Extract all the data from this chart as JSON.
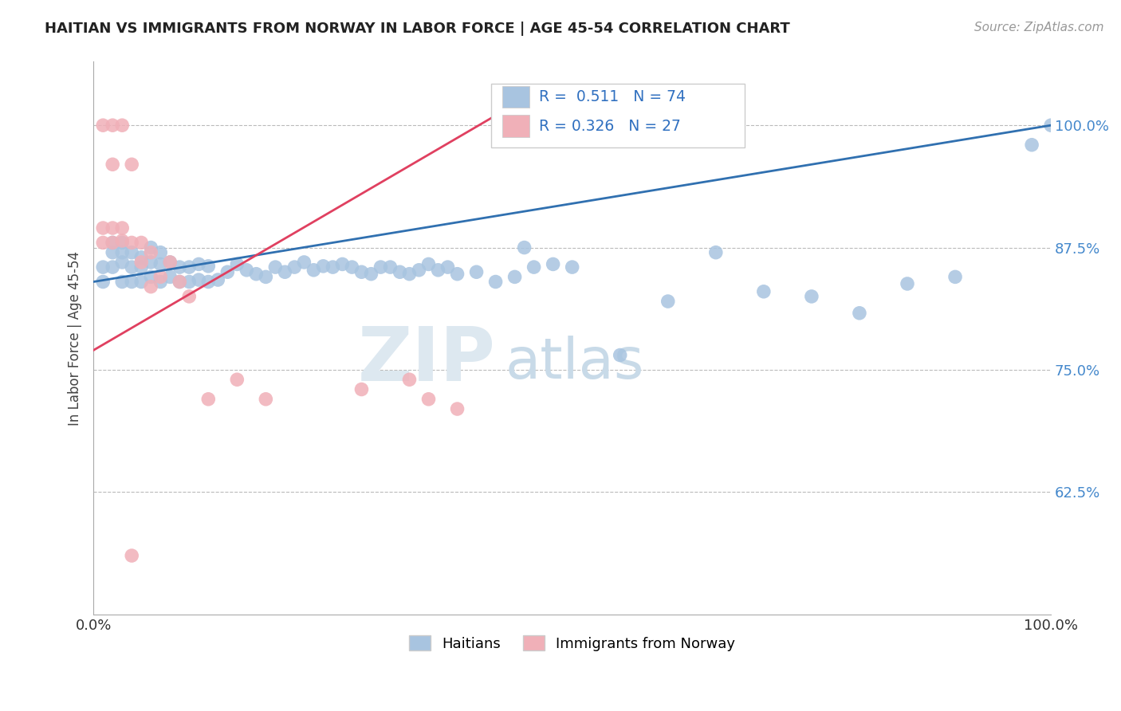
{
  "title": "HAITIAN VS IMMIGRANTS FROM NORWAY IN LABOR FORCE | AGE 45-54 CORRELATION CHART",
  "source": "Source: ZipAtlas.com",
  "ylabel": "In Labor Force | Age 45-54",
  "xlim": [
    0.0,
    1.0
  ],
  "ylim": [
    0.5,
    1.065
  ],
  "yticks": [
    0.625,
    0.75,
    0.875,
    1.0
  ],
  "ytick_labels": [
    "62.5%",
    "75.0%",
    "87.5%",
    "100.0%"
  ],
  "xticks": [
    0.0,
    0.25,
    0.5,
    0.75,
    1.0
  ],
  "xtick_labels": [
    "0.0%",
    "",
    "",
    "",
    "100.0%"
  ],
  "blue_R": 0.511,
  "blue_N": 74,
  "pink_R": 0.326,
  "pink_N": 27,
  "blue_color": "#a8c4e0",
  "pink_color": "#f0b0b8",
  "blue_line_color": "#3070b0",
  "pink_line_color": "#e04060",
  "legend_blue_label": "Haitians",
  "legend_pink_label": "Immigrants from Norway",
  "background_color": "#ffffff",
  "blue_scatter_x": [
    0.01,
    0.01,
    0.02,
    0.02,
    0.02,
    0.03,
    0.03,
    0.03,
    0.03,
    0.04,
    0.04,
    0.04,
    0.05,
    0.05,
    0.05,
    0.06,
    0.06,
    0.06,
    0.07,
    0.07,
    0.07,
    0.08,
    0.08,
    0.09,
    0.09,
    0.1,
    0.1,
    0.11,
    0.11,
    0.12,
    0.12,
    0.13,
    0.14,
    0.15,
    0.16,
    0.17,
    0.18,
    0.19,
    0.2,
    0.21,
    0.22,
    0.23,
    0.24,
    0.25,
    0.26,
    0.27,
    0.28,
    0.29,
    0.3,
    0.31,
    0.32,
    0.33,
    0.34,
    0.35,
    0.36,
    0.37,
    0.38,
    0.4,
    0.42,
    0.44,
    0.45,
    0.46,
    0.48,
    0.5,
    0.55,
    0.6,
    0.65,
    0.7,
    0.75,
    0.8,
    0.85,
    0.9,
    0.98,
    1.0
  ],
  "blue_scatter_y": [
    0.84,
    0.855,
    0.855,
    0.87,
    0.88,
    0.84,
    0.86,
    0.87,
    0.88,
    0.84,
    0.855,
    0.87,
    0.84,
    0.855,
    0.865,
    0.845,
    0.86,
    0.875,
    0.84,
    0.858,
    0.87,
    0.845,
    0.86,
    0.84,
    0.855,
    0.84,
    0.855,
    0.842,
    0.858,
    0.84,
    0.856,
    0.842,
    0.85,
    0.858,
    0.852,
    0.848,
    0.845,
    0.855,
    0.85,
    0.855,
    0.86,
    0.852,
    0.856,
    0.855,
    0.858,
    0.855,
    0.85,
    0.848,
    0.855,
    0.855,
    0.85,
    0.848,
    0.852,
    0.858,
    0.852,
    0.855,
    0.848,
    0.85,
    0.84,
    0.845,
    0.875,
    0.855,
    0.858,
    0.855,
    0.765,
    0.82,
    0.87,
    0.83,
    0.825,
    0.808,
    0.838,
    0.845,
    0.98,
    1.0
  ],
  "pink_scatter_x": [
    0.01,
    0.01,
    0.01,
    0.02,
    0.02,
    0.02,
    0.02,
    0.03,
    0.03,
    0.03,
    0.04,
    0.04,
    0.05,
    0.05,
    0.06,
    0.06,
    0.07,
    0.08,
    0.09,
    0.1,
    0.12,
    0.15,
    0.18,
    0.28,
    0.33,
    0.35,
    0.38
  ],
  "pink_scatter_y": [
    0.88,
    0.895,
    1.0,
    0.88,
    0.895,
    1.0,
    0.96,
    0.882,
    0.895,
    1.0,
    0.88,
    0.96,
    0.86,
    0.88,
    0.835,
    0.87,
    0.845,
    0.86,
    0.84,
    0.825,
    0.72,
    0.74,
    0.72,
    0.73,
    0.74,
    0.72,
    0.71
  ],
  "pink_outlier_x": [
    0.04
  ],
  "pink_outlier_y": [
    0.56
  ],
  "blue_trend_x0": 0.0,
  "blue_trend_y0": 0.84,
  "blue_trend_x1": 1.0,
  "blue_trend_y1": 1.0,
  "pink_trend_x0": 0.0,
  "pink_trend_y0": 0.77,
  "pink_trend_x1": 0.42,
  "pink_trend_y1": 1.01
}
